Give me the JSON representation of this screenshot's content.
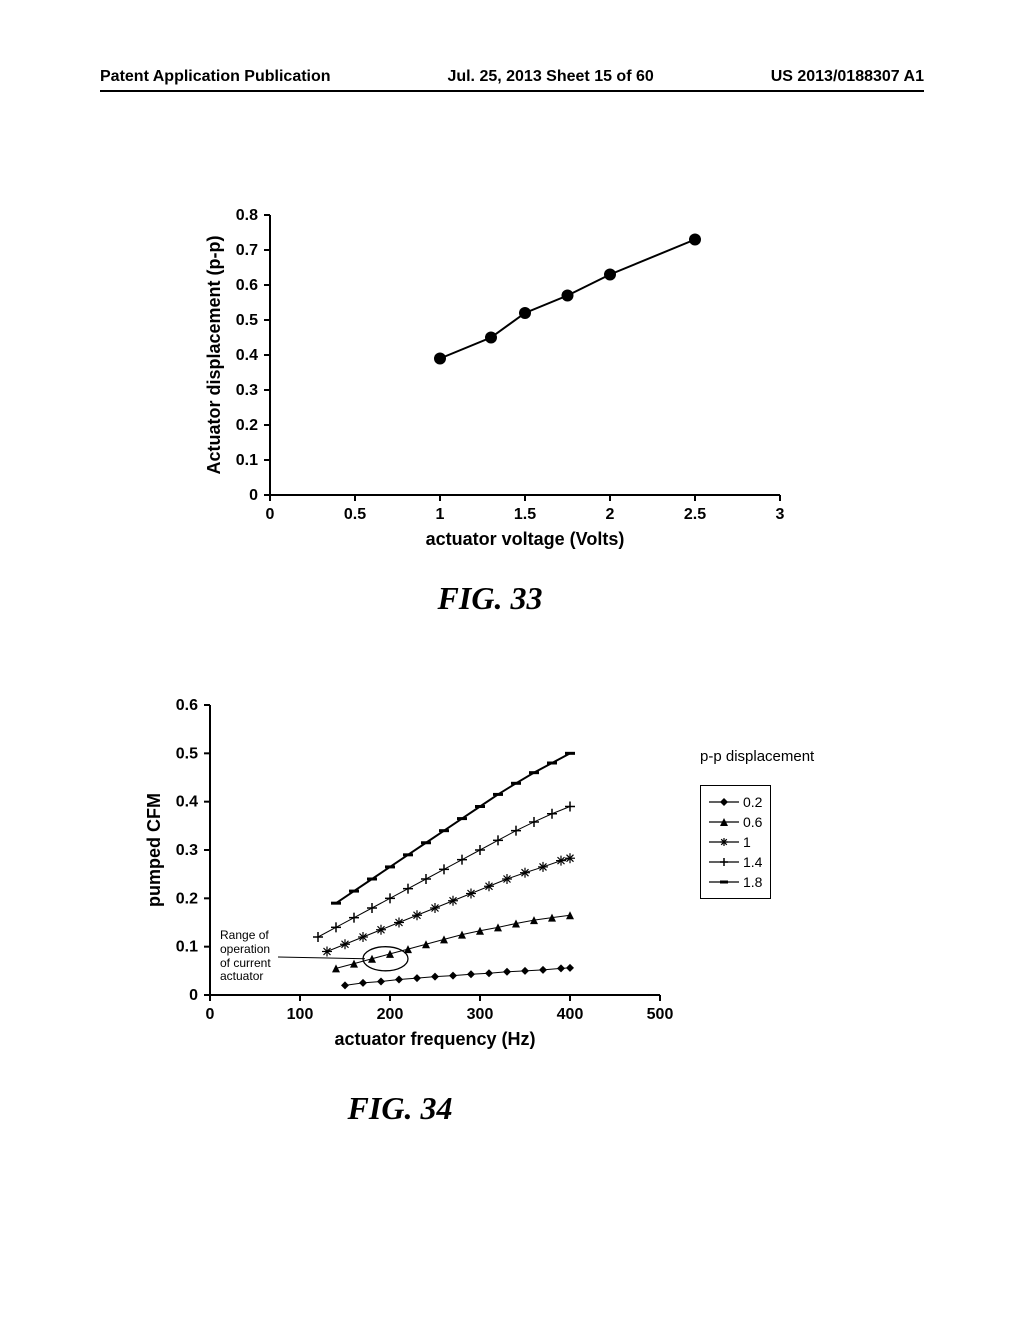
{
  "header": {
    "left": "Patent Application Publication",
    "center": "Jul. 25, 2013  Sheet 15 of 60",
    "right": "US 2013/0188307 A1"
  },
  "fig33": {
    "caption": "FIG. 33",
    "type": "line",
    "xlabel": "actuator voltage (Volts)",
    "ylabel": "Actuator displacement (p-p)",
    "xlim": [
      0,
      3
    ],
    "ylim": [
      0,
      0.8
    ],
    "xticks": [
      0,
      0.5,
      1,
      1.5,
      2,
      2.5,
      3
    ],
    "yticks": [
      0,
      0.1,
      0.2,
      0.3,
      0.4,
      0.5,
      0.6,
      0.7,
      0.8
    ],
    "series": [
      {
        "name": "displacement",
        "marker": "circle",
        "color": "#000000",
        "line_width": 2,
        "marker_size": 6,
        "points": [
          [
            1.0,
            0.39
          ],
          [
            1.3,
            0.45
          ],
          [
            1.5,
            0.52
          ],
          [
            1.75,
            0.57
          ],
          [
            2.0,
            0.63
          ],
          [
            2.5,
            0.73
          ]
        ]
      }
    ],
    "label_fontsize": 18,
    "tick_fontsize": 16,
    "background_color": "#ffffff",
    "axis_color": "#000000"
  },
  "fig34": {
    "caption": "FIG. 34",
    "type": "line",
    "xlabel": "actuator frequency (Hz)",
    "ylabel": "pumped CFM",
    "xlim": [
      0,
      500
    ],
    "ylim": [
      0,
      0.6
    ],
    "xticks": [
      0,
      100,
      200,
      300,
      400,
      500
    ],
    "yticks": [
      0,
      0.1,
      0.2,
      0.3,
      0.4,
      0.5,
      0.6
    ],
    "legend_title": "p-p displacement",
    "legend_items": [
      "0.2",
      "0.6",
      "1",
      "1.4",
      "1.8"
    ],
    "legend_markers": [
      "diamond",
      "triangle",
      "star",
      "tick",
      "dash"
    ],
    "annotation": "Range of\noperation\nof current\nactuator",
    "annotation_target": [
      170,
      0.08
    ],
    "circle_center": [
      195,
      0.075
    ],
    "circle_rx": 25,
    "circle_ry": 0.025,
    "series": [
      {
        "name": "0.2",
        "marker": "diamond",
        "color": "#000000",
        "line_width": 1,
        "marker_size": 4,
        "points": [
          [
            150,
            0.02
          ],
          [
            170,
            0.025
          ],
          [
            190,
            0.028
          ],
          [
            210,
            0.032
          ],
          [
            230,
            0.035
          ],
          [
            250,
            0.038
          ],
          [
            270,
            0.04
          ],
          [
            290,
            0.043
          ],
          [
            310,
            0.045
          ],
          [
            330,
            0.048
          ],
          [
            350,
            0.05
          ],
          [
            370,
            0.052
          ],
          [
            390,
            0.055
          ],
          [
            400,
            0.056
          ]
        ]
      },
      {
        "name": "0.6",
        "marker": "triangle",
        "color": "#000000",
        "line_width": 1,
        "marker_size": 4,
        "points": [
          [
            140,
            0.055
          ],
          [
            160,
            0.065
          ],
          [
            180,
            0.075
          ],
          [
            200,
            0.085
          ],
          [
            220,
            0.095
          ],
          [
            240,
            0.105
          ],
          [
            260,
            0.115
          ],
          [
            280,
            0.125
          ],
          [
            300,
            0.133
          ],
          [
            320,
            0.14
          ],
          [
            340,
            0.148
          ],
          [
            360,
            0.155
          ],
          [
            380,
            0.16
          ],
          [
            400,
            0.165
          ]
        ]
      },
      {
        "name": "1",
        "marker": "star",
        "color": "#000000",
        "line_width": 1,
        "marker_size": 5,
        "points": [
          [
            130,
            0.09
          ],
          [
            150,
            0.105
          ],
          [
            170,
            0.12
          ],
          [
            190,
            0.135
          ],
          [
            210,
            0.15
          ],
          [
            230,
            0.165
          ],
          [
            250,
            0.18
          ],
          [
            270,
            0.195
          ],
          [
            290,
            0.21
          ],
          [
            310,
            0.225
          ],
          [
            330,
            0.24
          ],
          [
            350,
            0.253
          ],
          [
            370,
            0.265
          ],
          [
            390,
            0.278
          ],
          [
            400,
            0.283
          ]
        ]
      },
      {
        "name": "1.4",
        "marker": "tick",
        "color": "#000000",
        "line_width": 1,
        "marker_size": 5,
        "points": [
          [
            120,
            0.12
          ],
          [
            140,
            0.14
          ],
          [
            160,
            0.16
          ],
          [
            180,
            0.18
          ],
          [
            200,
            0.2
          ],
          [
            220,
            0.22
          ],
          [
            240,
            0.24
          ],
          [
            260,
            0.26
          ],
          [
            280,
            0.28
          ],
          [
            300,
            0.3
          ],
          [
            320,
            0.32
          ],
          [
            340,
            0.34
          ],
          [
            360,
            0.358
          ],
          [
            380,
            0.375
          ],
          [
            400,
            0.39
          ]
        ]
      },
      {
        "name": "1.8",
        "marker": "dash",
        "color": "#000000",
        "line_width": 2,
        "marker_size": 5,
        "points": [
          [
            140,
            0.19
          ],
          [
            160,
            0.215
          ],
          [
            180,
            0.24
          ],
          [
            200,
            0.265
          ],
          [
            220,
            0.29
          ],
          [
            240,
            0.315
          ],
          [
            260,
            0.34
          ],
          [
            280,
            0.365
          ],
          [
            300,
            0.39
          ],
          [
            320,
            0.415
          ],
          [
            340,
            0.438
          ],
          [
            360,
            0.46
          ],
          [
            380,
            0.48
          ],
          [
            400,
            0.5
          ]
        ]
      }
    ],
    "label_fontsize": 18,
    "tick_fontsize": 16,
    "background_color": "#ffffff",
    "axis_color": "#000000"
  }
}
